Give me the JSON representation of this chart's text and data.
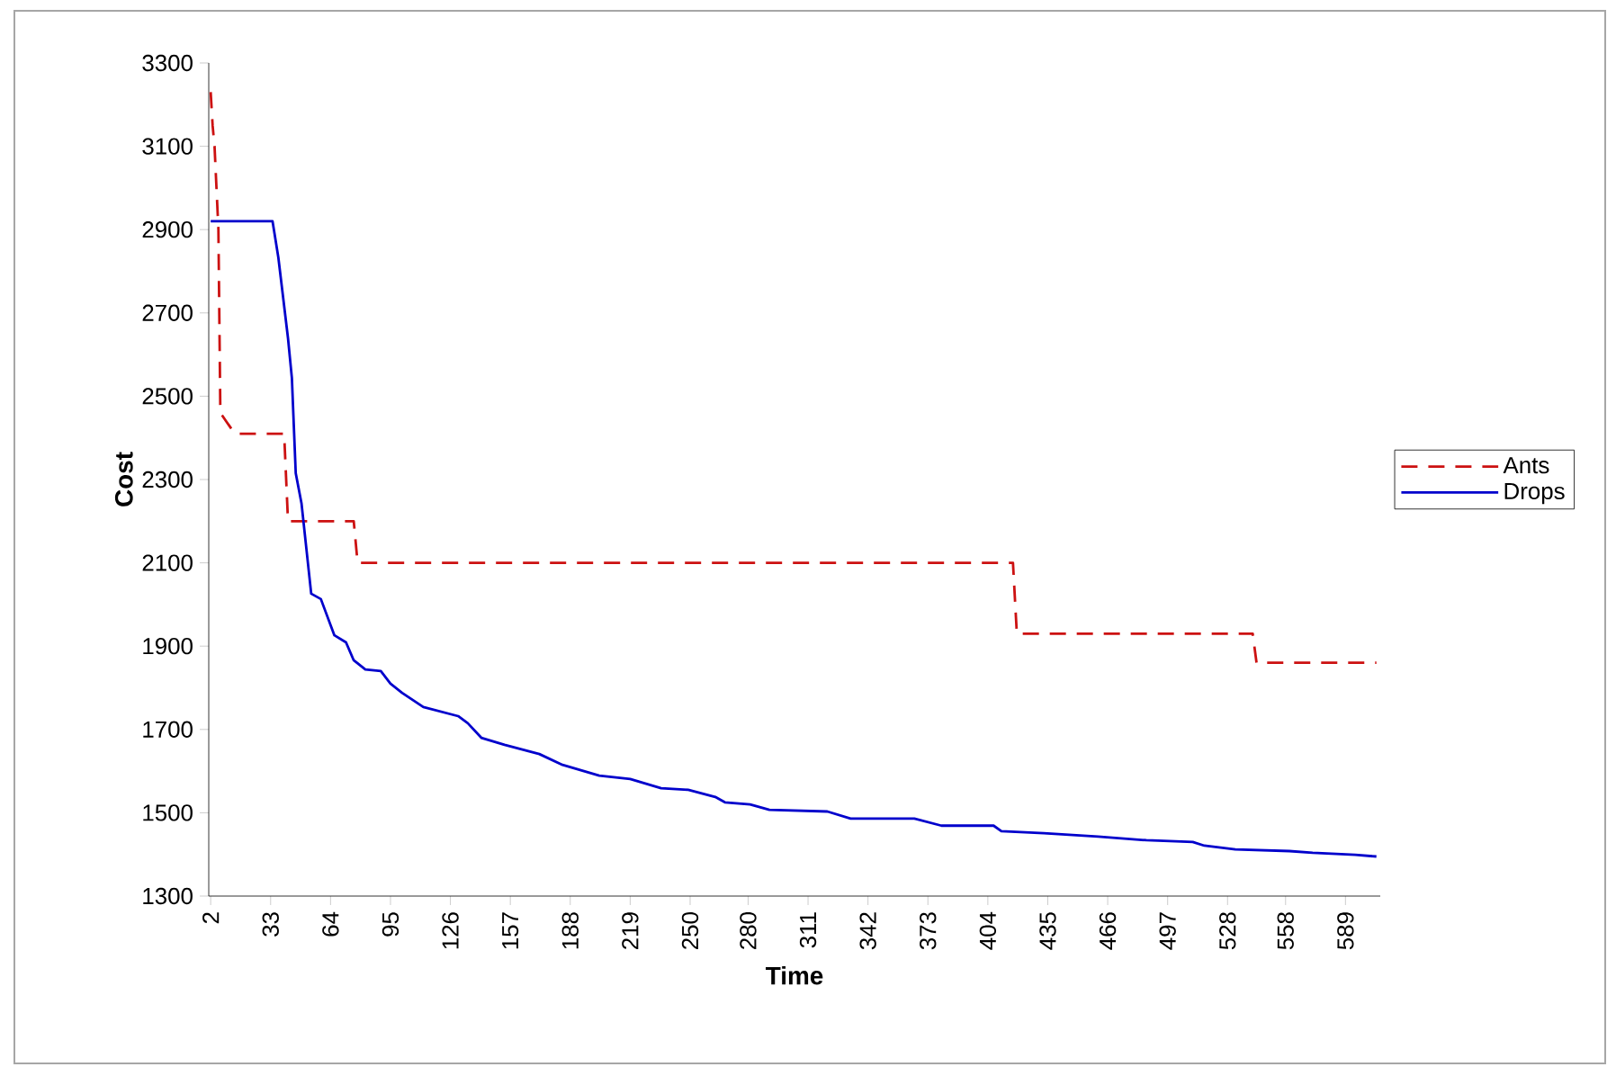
{
  "chart_data": {
    "type": "line",
    "xlabel": "Time",
    "ylabel": "Cost",
    "xlim": [
      1,
      607
    ],
    "ylim": [
      1300,
      3300
    ],
    "xticks": [
      2,
      33,
      64,
      95,
      126,
      157,
      188,
      219,
      250,
      280,
      311,
      342,
      373,
      404,
      435,
      466,
      497,
      528,
      558,
      589
    ],
    "yticks": [
      1300,
      1500,
      1700,
      1900,
      2100,
      2300,
      2500,
      2700,
      2900,
      3100,
      3300
    ],
    "legend": "right",
    "grid": false,
    "series": [
      {
        "name": "Ants",
        "color": "#cc1111",
        "line_style": "dashed",
        "x": [
          2,
          3,
          4,
          6,
          7,
          10,
          13,
          15,
          40,
          42,
          76,
          78,
          417,
          419,
          541,
          543,
          605
        ],
        "values": [
          3230,
          3150,
          3100,
          2900,
          2460,
          2440,
          2420,
          2410,
          2410,
          2200,
          2200,
          2100,
          2100,
          1930,
          1930,
          1860,
          1860
        ]
      },
      {
        "name": "Drops",
        "color": "#0000cc",
        "line_style": "solid",
        "x": [
          2,
          34,
          37,
          42,
          44,
          46,
          49,
          54,
          59,
          66,
          72,
          76,
          82,
          90,
          95,
          101,
          112,
          130,
          135,
          142,
          154,
          172,
          184,
          203,
          219,
          235,
          249,
          263,
          268,
          281,
          291,
          321,
          333,
          366,
          380,
          407,
          411,
          433,
          461,
          486,
          510,
          516,
          532,
          560,
          572,
          594,
          605
        ],
        "values": [
          2920,
          2920,
          2833,
          2639,
          2544,
          2315,
          2242,
          2026,
          2013,
          1926,
          1909,
          1866,
          1844,
          1840,
          1810,
          1788,
          1754,
          1732,
          1715,
          1680,
          1663,
          1641,
          1615,
          1589,
          1581,
          1559,
          1555,
          1538,
          1525,
          1520,
          1507,
          1503,
          1486,
          1486,
          1469,
          1469,
          1456,
          1451,
          1443,
          1434,
          1430,
          1421,
          1412,
          1408,
          1404,
          1399,
          1395
        ]
      }
    ]
  }
}
